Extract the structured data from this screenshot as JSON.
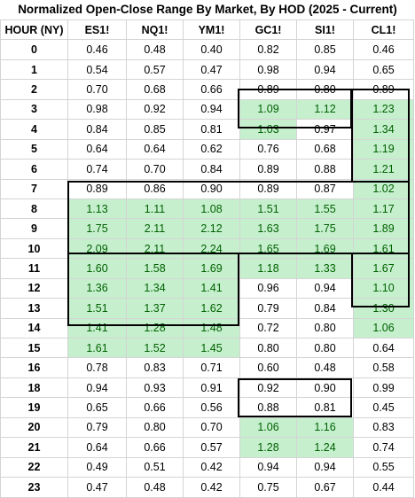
{
  "sheet": {
    "title": "Normalized Open-Close Range By Market, By HOD (2025 - Current)",
    "headers": [
      "HOUR (NY)",
      "ES1!",
      "NQ1!",
      "YM1!",
      "GC1!",
      "SI1!",
      "CL1!"
    ],
    "highlight_color": "#c6efce",
    "highlight_text_color": "#006100",
    "rows": [
      {
        "hour": "0",
        "values": [
          "0.46",
          "0.48",
          "0.40",
          "0.82",
          "0.85",
          "0.46"
        ],
        "hl": [
          0,
          0,
          0,
          0,
          0,
          0
        ]
      },
      {
        "hour": "1",
        "values": [
          "0.54",
          "0.57",
          "0.47",
          "0.98",
          "0.94",
          "0.65"
        ],
        "hl": [
          0,
          0,
          0,
          0,
          0,
          0
        ]
      },
      {
        "hour": "2",
        "values": [
          "0.70",
          "0.68",
          "0.66",
          "0.89",
          "0.80",
          "0.89"
        ],
        "hl": [
          0,
          0,
          0,
          0,
          0,
          0
        ]
      },
      {
        "hour": "3",
        "values": [
          "0.98",
          "0.92",
          "0.94",
          "1.09",
          "1.12",
          "1.23"
        ],
        "hl": [
          0,
          0,
          0,
          1,
          1,
          1
        ]
      },
      {
        "hour": "4",
        "values": [
          "0.84",
          "0.85",
          "0.81",
          "1.03",
          "0.97",
          "1.34"
        ],
        "hl": [
          0,
          0,
          0,
          1,
          0,
          1
        ]
      },
      {
        "hour": "5",
        "values": [
          "0.64",
          "0.64",
          "0.62",
          "0.76",
          "0.68",
          "1.19"
        ],
        "hl": [
          0,
          0,
          0,
          0,
          0,
          1
        ]
      },
      {
        "hour": "6",
        "values": [
          "0.74",
          "0.70",
          "0.84",
          "0.89",
          "0.88",
          "1.21"
        ],
        "hl": [
          0,
          0,
          0,
          0,
          0,
          1
        ]
      },
      {
        "hour": "7",
        "values": [
          "0.89",
          "0.86",
          "0.90",
          "0.89",
          "0.87",
          "1.02"
        ],
        "hl": [
          0,
          0,
          0,
          0,
          0,
          1
        ]
      },
      {
        "hour": "8",
        "values": [
          "1.13",
          "1.11",
          "1.08",
          "1.51",
          "1.55",
          "1.17"
        ],
        "hl": [
          1,
          1,
          1,
          1,
          1,
          1
        ]
      },
      {
        "hour": "9",
        "values": [
          "1.75",
          "2.11",
          "2.12",
          "1.63",
          "1.75",
          "1.89"
        ],
        "hl": [
          1,
          1,
          1,
          1,
          1,
          1
        ]
      },
      {
        "hour": "10",
        "values": [
          "2.09",
          "2.11",
          "2.24",
          "1.65",
          "1.69",
          "1.61"
        ],
        "hl": [
          1,
          1,
          1,
          1,
          1,
          1
        ]
      },
      {
        "hour": "11",
        "values": [
          "1.60",
          "1.58",
          "1.69",
          "1.18",
          "1.33",
          "1.67"
        ],
        "hl": [
          1,
          1,
          1,
          1,
          1,
          1
        ]
      },
      {
        "hour": "12",
        "values": [
          "1.36",
          "1.34",
          "1.41",
          "0.96",
          "0.94",
          "1.10"
        ],
        "hl": [
          1,
          1,
          1,
          0,
          0,
          1
        ]
      },
      {
        "hour": "13",
        "values": [
          "1.51",
          "1.37",
          "1.62",
          "0.79",
          "0.84",
          "1.30"
        ],
        "hl": [
          1,
          1,
          1,
          0,
          0,
          1
        ]
      },
      {
        "hour": "14",
        "values": [
          "1.41",
          "1.28",
          "1.48",
          "0.72",
          "0.80",
          "1.06"
        ],
        "hl": [
          1,
          1,
          1,
          0,
          0,
          1
        ]
      },
      {
        "hour": "15",
        "values": [
          "1.61",
          "1.52",
          "1.45",
          "0.80",
          "0.80",
          "0.64"
        ],
        "hl": [
          1,
          1,
          1,
          0,
          0,
          0
        ]
      },
      {
        "hour": "16",
        "values": [
          "0.78",
          "0.83",
          "0.71",
          "0.60",
          "0.48",
          "0.58"
        ],
        "hl": [
          0,
          0,
          0,
          0,
          0,
          0
        ]
      },
      {
        "hour": "18",
        "values": [
          "0.94",
          "0.93",
          "0.91",
          "0.92",
          "0.90",
          "0.99"
        ],
        "hl": [
          0,
          0,
          0,
          0,
          0,
          0
        ]
      },
      {
        "hour": "19",
        "values": [
          "0.65",
          "0.66",
          "0.56",
          "0.88",
          "0.81",
          "0.45"
        ],
        "hl": [
          0,
          0,
          0,
          0,
          0,
          0
        ]
      },
      {
        "hour": "20",
        "values": [
          "0.79",
          "0.80",
          "0.70",
          "1.06",
          "1.16",
          "0.83"
        ],
        "hl": [
          0,
          0,
          0,
          1,
          1,
          0
        ]
      },
      {
        "hour": "21",
        "values": [
          "0.64",
          "0.66",
          "0.57",
          "1.28",
          "1.24",
          "0.74"
        ],
        "hl": [
          0,
          0,
          0,
          1,
          1,
          0
        ]
      },
      {
        "hour": "22",
        "values": [
          "0.49",
          "0.51",
          "0.42",
          "0.94",
          "0.94",
          "0.55"
        ],
        "hl": [
          0,
          0,
          0,
          0,
          0,
          0
        ]
      },
      {
        "hour": "23",
        "values": [
          "0.47",
          "0.48",
          "0.42",
          "0.75",
          "0.67",
          "0.44"
        ],
        "hl": [
          0,
          0,
          0,
          0,
          0,
          0
        ]
      }
    ]
  }
}
